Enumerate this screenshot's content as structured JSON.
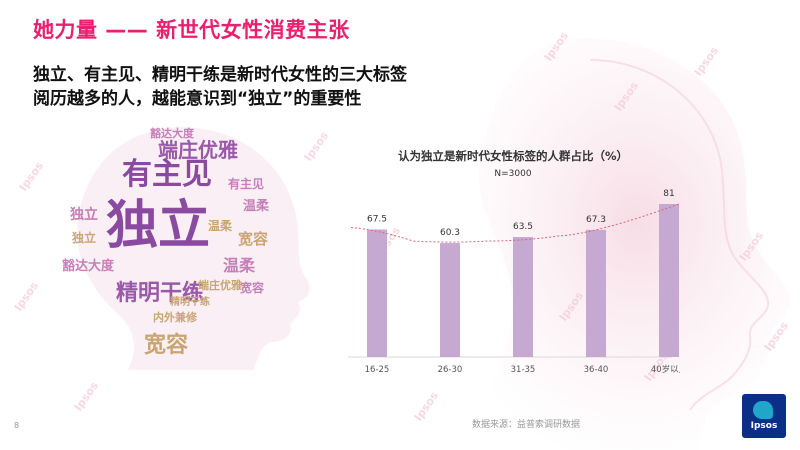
{
  "slide": {
    "title": "她力量 —— 新世代女性消费主张",
    "headline_lines": [
      "独立、有主见、精明干练是新时代女性的三大标签",
      "阅历越多的人，越能意识到“独立”的重要性"
    ],
    "page_number": "8",
    "source": "数据来源：益普索调研数据",
    "logo_text": "Ipsos",
    "watermark_text": "Ipsos"
  },
  "word_cloud": {
    "words": [
      {
        "text": "独立",
        "color": "#8a4aa0"
      },
      {
        "text": "有主见",
        "color": "#8a4aa0"
      },
      {
        "text": "精明干练",
        "color": "#9a5aa8"
      },
      {
        "text": "端庄优雅",
        "color": "#9a5aa8"
      },
      {
        "text": "宽容",
        "color": "#c9a574"
      },
      {
        "text": "宽容",
        "color": "#c9a574"
      },
      {
        "text": "温柔",
        "color": "#c77fb8"
      },
      {
        "text": "温柔",
        "color": "#c77fb8"
      },
      {
        "text": "豁达大度",
        "color": "#c77fb8"
      },
      {
        "text": "豁达大度",
        "color": "#c77fb8"
      },
      {
        "text": "内外兼修",
        "color": "#c9a574"
      },
      {
        "text": "独立",
        "color": "#c77fb8"
      },
      {
        "text": "精明干练",
        "color": "#c9a574"
      },
      {
        "text": "有主见",
        "color": "#c77fb8"
      },
      {
        "text": "端庄优雅",
        "color": "#c9a574"
      },
      {
        "text": "独立",
        "color": "#c9a574"
      },
      {
        "text": "温柔",
        "color": "#c9a574"
      },
      {
        "text": "宽容",
        "color": "#c77fb8"
      }
    ]
  },
  "chart_data": {
    "type": "bar",
    "title": "认为独立是新时代女性标签的人群占比（%）",
    "subtitle": "N=3000",
    "categories": [
      "16-25",
      "26-30",
      "31-35",
      "36-40",
      "40岁以上"
    ],
    "values": [
      67.5,
      60.3,
      63.5,
      67.3,
      81
    ],
    "value_labels": [
      "67.5",
      "60.3",
      "63.5",
      "67.3",
      "81"
    ],
    "ylim": [
      0,
      90
    ],
    "bar_color": "#c5a9d0",
    "trend_line": true,
    "trend_color": "#e0637a",
    "grid": false,
    "legend": "none"
  },
  "colors": {
    "title": "#e8206f",
    "brand": "#0b2f86",
    "brand_accent": "#1fa6c8"
  }
}
